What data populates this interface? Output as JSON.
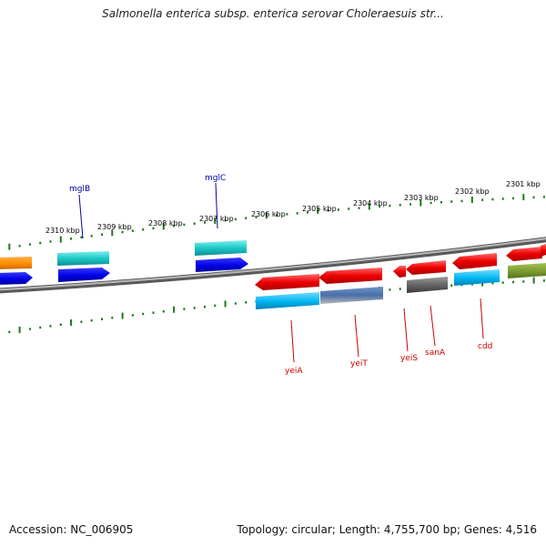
{
  "title": "Salmonella enterica subsp. enterica serovar Choleraesuis str...",
  "footer": {
    "accession": "Accession: NC_006905",
    "summary": "Topology: circular; Length: 4,755,700 bp; Genes: 4,516"
  },
  "kbp_labels": [
    "2310 kbp",
    "2309 kbp",
    "2308 kbp",
    "2307 kbp",
    "2306 kbp",
    "2305 kbp",
    "2304 kbp",
    "2303 kbp",
    "2302 kbp",
    "2301 kbp"
  ],
  "gene_labels": {
    "forward": [
      "mglB",
      "mglC"
    ],
    "reverse": [
      "yeiA",
      "yeiT",
      "yeiS",
      "sanA",
      "cdd"
    ]
  },
  "colors": {
    "forward_label": "#0000aa",
    "reverse_label": "#cc0000",
    "tick": "#1a7a1a",
    "backbone": "#8a8a8a"
  }
}
